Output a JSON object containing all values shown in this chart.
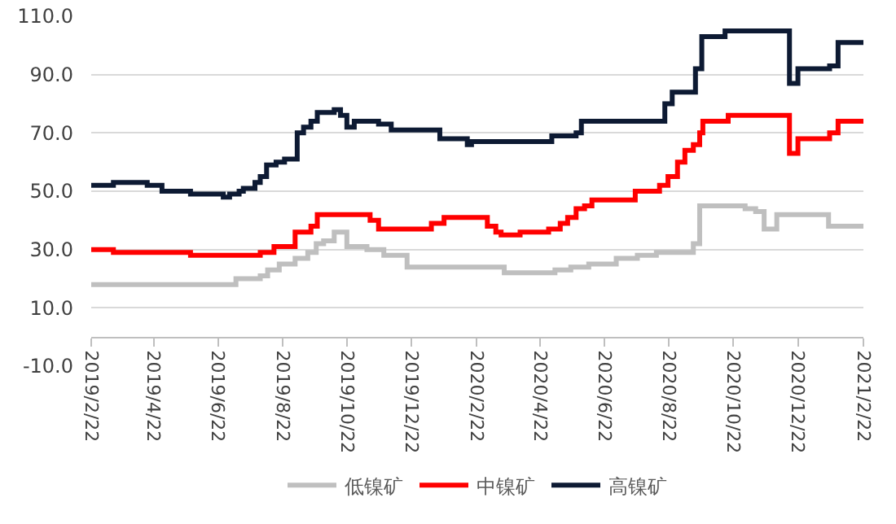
{
  "chart_data": {
    "type": "step",
    "xlim": [
      "2019-02-22",
      "2021-02-22"
    ],
    "xticks": [
      {
        "value": "2019-02-22",
        "label": "2019/2/22"
      },
      {
        "value": "2019-04-22",
        "label": "2019/4/22"
      },
      {
        "value": "2019-06-22",
        "label": "2019/6/22"
      },
      {
        "value": "2019-08-22",
        "label": "2019/8/22"
      },
      {
        "value": "2019-10-22",
        "label": "2019/10/22"
      },
      {
        "value": "2019-12-22",
        "label": "2019/12/22"
      },
      {
        "value": "2020-02-22",
        "label": "2020/2/22"
      },
      {
        "value": "2020-04-22",
        "label": "2020/4/22"
      },
      {
        "value": "2020-06-22",
        "label": "2020/6/22"
      },
      {
        "value": "2020-08-22",
        "label": "2020/8/22"
      },
      {
        "value": "2020-10-22",
        "label": "2020/10/22"
      },
      {
        "value": "2020-12-22",
        "label": "2020/12/22"
      },
      {
        "value": "2021-02-22",
        "label": "2021/2/22"
      }
    ],
    "ylim": [
      -10,
      110
    ],
    "yticks": [
      {
        "value": -10,
        "label": "-10.0"
      },
      {
        "value": 10,
        "label": "10.0"
      },
      {
        "value": 30,
        "label": "30.0"
      },
      {
        "value": 50,
        "label": "50.0"
      },
      {
        "value": 70,
        "label": "70.0"
      },
      {
        "value": 90,
        "label": "90.0"
      },
      {
        "value": 110,
        "label": "110.0"
      }
    ],
    "grid": "y",
    "legend": "bottom",
    "series": [
      {
        "name": "低镍矿",
        "color": "#bfbfbf",
        "x": [
          "2019-02-22",
          "2019-07-09",
          "2019-08-01",
          "2019-08-08",
          "2019-08-19",
          "2019-09-03",
          "2019-09-15",
          "2019-09-23",
          "2019-09-30",
          "2019-10-10",
          "2019-10-22",
          "2019-11-10",
          "2019-11-26",
          "2019-12-18",
          "2020-03-19",
          "2020-05-06",
          "2020-05-21",
          "2020-06-07",
          "2020-07-03",
          "2020-07-23",
          "2020-08-10",
          "2020-09-14",
          "2020-09-20",
          "2020-11-02",
          "2020-11-12",
          "2020-11-20",
          "2020-12-02",
          "2021-01-20",
          "2021-02-22"
        ],
        "values": [
          18,
          20,
          21,
          23,
          25,
          27,
          29,
          32,
          33,
          36,
          31,
          30,
          28,
          24,
          22,
          23,
          24,
          25,
          27,
          28,
          29,
          32,
          45,
          44,
          43,
          37,
          42,
          38,
          38
        ]
      },
      {
        "name": "中镍矿",
        "color": "#ff0000",
        "x": [
          "2019-02-22",
          "2019-03-15",
          "2019-05-27",
          "2019-08-01",
          "2019-08-14",
          "2019-09-03",
          "2019-09-18",
          "2019-09-24",
          "2019-11-13",
          "2019-11-21",
          "2020-01-10",
          "2020-01-22",
          "2020-03-03",
          "2020-03-11",
          "2020-03-16",
          "2020-04-03",
          "2020-04-30",
          "2020-05-11",
          "2020-05-18",
          "2020-05-26",
          "2020-06-03",
          "2020-06-10",
          "2020-07-21",
          "2020-08-13",
          "2020-08-21",
          "2020-08-30",
          "2020-09-06",
          "2020-09-14",
          "2020-09-20",
          "2020-09-23",
          "2020-10-17",
          "2020-12-14",
          "2020-12-22",
          "2021-01-21",
          "2021-01-29",
          "2021-02-22"
        ],
        "values": [
          30,
          29,
          28,
          29,
          31,
          36,
          38,
          42,
          40,
          37,
          39,
          41,
          38,
          36,
          35,
          36,
          37,
          39,
          41,
          44,
          45,
          47,
          50,
          52,
          55,
          60,
          64,
          66,
          70,
          74,
          76,
          63,
          68,
          70,
          74,
          74
        ]
      },
      {
        "name": "高镍矿",
        "color": "#0d1a33",
        "x": [
          "2019-02-22",
          "2019-03-15",
          "2019-04-16",
          "2019-04-30",
          "2019-05-27",
          "2019-06-27",
          "2019-07-03",
          "2019-07-12",
          "2019-07-16",
          "2019-07-27",
          "2019-08-01",
          "2019-08-07",
          "2019-08-16",
          "2019-08-24",
          "2019-09-05",
          "2019-09-11",
          "2019-09-18",
          "2019-09-24",
          "2019-10-10",
          "2019-10-16",
          "2019-10-22",
          "2019-10-29",
          "2019-11-21",
          "2019-12-03",
          "2020-01-18",
          "2020-02-13",
          "2020-02-17",
          "2020-05-03",
          "2020-05-26",
          "2020-05-31",
          "2020-08-18",
          "2020-08-25",
          "2020-09-16",
          "2020-09-22",
          "2020-10-14",
          "2020-12-14",
          "2020-12-22",
          "2021-01-21",
          "2021-01-29",
          "2021-02-22"
        ],
        "values": [
          52,
          53,
          52,
          50,
          49,
          48,
          49,
          50,
          51,
          53,
          55,
          59,
          60,
          61,
          70,
          72,
          74,
          77,
          78,
          76,
          72,
          74,
          73,
          71,
          68,
          66,
          67,
          69,
          70,
          74,
          80,
          84,
          92,
          103,
          105,
          87,
          92,
          93,
          101,
          101
        ]
      }
    ]
  }
}
